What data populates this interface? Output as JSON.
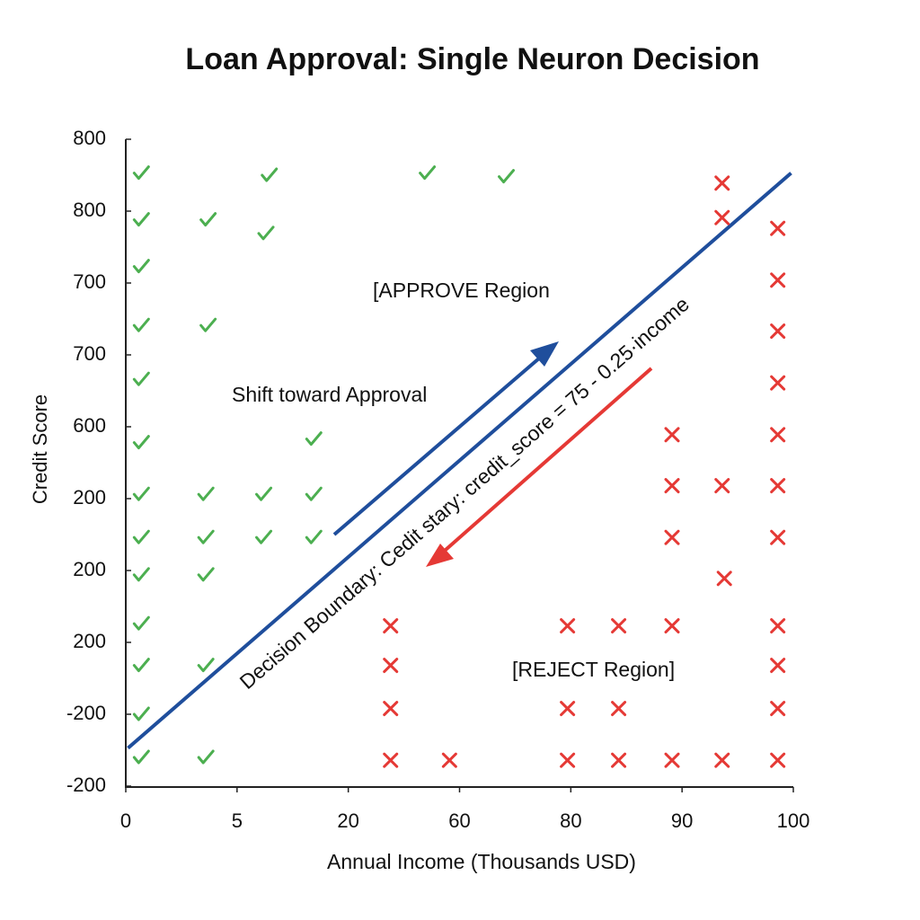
{
  "chart_data": {
    "type": "scatter",
    "title": "Loan Approval: Single Neuron Decision",
    "x_label": "Annual Income (Thousands USD)",
    "y_label": "Credit Score",
    "xlim": [
      0,
      6
    ],
    "xticks": [
      {
        "value": 0,
        "label": "0"
      },
      {
        "value": 1,
        "label": "5"
      },
      {
        "value": 2,
        "label": "20"
      },
      {
        "value": 3,
        "label": "60"
      },
      {
        "value": 4,
        "label": "80"
      },
      {
        "value": 5,
        "label": "90"
      },
      {
        "value": 6,
        "label": "100"
      }
    ],
    "ylim": [
      0,
      9
    ],
    "yticks": [
      {
        "value": 0,
        "label": "-200"
      },
      {
        "value": 1,
        "label": "-200"
      },
      {
        "value": 2,
        "label": "200"
      },
      {
        "value": 3,
        "label": "200"
      },
      {
        "value": 4,
        "label": "200"
      },
      {
        "value": 5,
        "label": "600"
      },
      {
        "value": 6,
        "label": "700"
      },
      {
        "value": 7,
        "label": "700"
      },
      {
        "value": 8,
        "label": "800"
      },
      {
        "value": 9,
        "label": "800"
      }
    ],
    "series": [
      {
        "marker": "check",
        "color": "#4caf50",
        "x": [
          0.14,
          1.29,
          2.71,
          3.42,
          0.14,
          0.74,
          1.26,
          0.14,
          0.14,
          0.74,
          0.14,
          0.14,
          1.69,
          0.14,
          0.72,
          1.24,
          1.69,
          0.14,
          0.72,
          1.24,
          1.69,
          0.14,
          0.72,
          0.14,
          0.14,
          0.72,
          0.14,
          0.14,
          0.72
        ],
        "y": [
          8.53,
          8.5,
          8.53,
          8.48,
          7.88,
          7.88,
          7.69,
          7.23,
          6.41,
          6.41,
          5.66,
          4.78,
          4.83,
          4.06,
          4.06,
          4.06,
          4.06,
          3.46,
          3.46,
          3.46,
          3.46,
          2.94,
          2.94,
          2.26,
          1.68,
          1.68,
          1.0,
          0.4,
          0.4
        ]
      },
      {
        "marker": "cross",
        "color": "#e53935",
        "x": [
          5.36,
          5.36,
          5.86,
          5.86,
          5.86,
          5.86,
          5.86,
          4.91,
          4.91,
          5.36,
          5.86,
          4.91,
          5.86,
          5.38,
          2.38,
          3.97,
          4.43,
          4.91,
          5.86,
          2.38,
          5.86,
          2.38,
          3.97,
          4.43,
          5.86,
          2.38,
          2.91,
          3.97,
          4.43,
          4.91,
          5.36,
          5.86
        ],
        "y": [
          8.39,
          7.91,
          7.76,
          7.04,
          6.33,
          5.61,
          4.89,
          4.89,
          4.18,
          4.18,
          4.18,
          3.46,
          3.46,
          2.89,
          2.23,
          2.23,
          2.23,
          2.23,
          2.23,
          1.68,
          1.68,
          1.08,
          1.08,
          1.08,
          1.08,
          0.36,
          0.36,
          0.36,
          0.36,
          0.36,
          0.36,
          0.36
        ]
      }
    ],
    "boundary": {
      "x": [
        0.02,
        5.98
      ],
      "y": [
        0.53,
        8.53
      ],
      "color": "#1f4e9c"
    },
    "annotations": [
      "[APPROVE Region",
      "Shift toward Approval",
      "Decision Boundary: Cedit stary: credit_score = 75 - 0.25·income",
      "[REJECT Region]"
    ]
  }
}
